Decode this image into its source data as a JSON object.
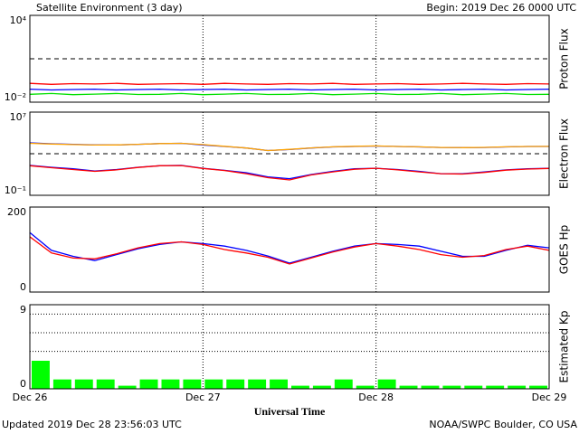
{
  "header": {
    "title": "Satellite Environment (3 day)",
    "begin": "Begin:  2019 Dec 26 0000 UTC"
  },
  "footer": {
    "x_label": "Universal Time",
    "updated": "Updated 2019 Dec 28 23:56:03 UTC",
    "credit": "NOAA/SWPC Boulder, CO USA"
  },
  "chart_data": [
    {
      "type": "line",
      "ylabel": "Proton Flux",
      "log": true,
      "xlim": [
        0,
        72
      ],
      "xticks": [
        0,
        24,
        48,
        72
      ],
      "ylim": [
        0.01,
        10000
      ],
      "yticks": [
        {
          "value": 10000,
          "label": "10⁴"
        },
        {
          "value": 0.01,
          "label": "10⁻²"
        }
      ],
      "hlines": [
        10
      ],
      "x": [
        0,
        3,
        6,
        9,
        12,
        15,
        18,
        21,
        24,
        27,
        30,
        33,
        36,
        39,
        42,
        45,
        48,
        51,
        54,
        57,
        60,
        63,
        66,
        69,
        72
      ],
      "series": [
        {
          "color": "#ff0000",
          "values": [
            0.2,
            0.17,
            0.19,
            0.18,
            0.2,
            0.17,
            0.18,
            0.19,
            0.17,
            0.2,
            0.18,
            0.17,
            0.19,
            0.18,
            0.2,
            0.17,
            0.18,
            0.19,
            0.17,
            0.18,
            0.2,
            0.18,
            0.17,
            0.19,
            0.18
          ]
        },
        {
          "color": "#0000ff",
          "values": [
            0.08,
            0.07,
            0.075,
            0.08,
            0.07,
            0.075,
            0.08,
            0.07,
            0.075,
            0.08,
            0.07,
            0.075,
            0.08,
            0.07,
            0.075,
            0.08,
            0.07,
            0.075,
            0.08,
            0.07,
            0.075,
            0.08,
            0.07,
            0.075,
            0.08
          ]
        },
        {
          "color": "#00e000",
          "values": [
            0.035,
            0.04,
            0.033,
            0.036,
            0.04,
            0.034,
            0.035,
            0.04,
            0.033,
            0.036,
            0.04,
            0.034,
            0.035,
            0.04,
            0.033,
            0.036,
            0.04,
            0.034,
            0.035,
            0.04,
            0.033,
            0.036,
            0.04,
            0.034,
            0.035
          ]
        }
      ]
    },
    {
      "type": "line",
      "ylabel": "Electron Flux",
      "log": true,
      "xlim": [
        0,
        72
      ],
      "xticks": [
        0,
        24,
        48,
        72
      ],
      "ylim": [
        0.1,
        10000000
      ],
      "yticks": [
        {
          "value": 10000000,
          "label": "10⁷"
        },
        {
          "value": 0.1,
          "label": "10⁻¹"
        }
      ],
      "hlines": [
        1000
      ],
      "x": [
        0,
        3,
        6,
        9,
        12,
        15,
        18,
        21,
        24,
        27,
        30,
        33,
        36,
        39,
        42,
        45,
        48,
        51,
        54,
        57,
        60,
        63,
        66,
        69,
        72
      ],
      "series": [
        {
          "color": "#0000ff",
          "values": [
            11000,
            9000,
            8000,
            7000,
            7000,
            8000,
            9500,
            10000,
            7000,
            5000,
            3500,
            2000,
            2500,
            3500,
            4500,
            5000,
            5500,
            5000,
            4500,
            4000,
            3800,
            4000,
            4500,
            5000,
            5000
          ]
        },
        {
          "color": "#ffa500",
          "values": [
            10000,
            8500,
            7500,
            6800,
            7000,
            8000,
            9500,
            10000,
            7500,
            5200,
            3500,
            2000,
            2600,
            3600,
            4600,
            5200,
            5600,
            5000,
            4600,
            4000,
            3800,
            4100,
            4600,
            5000,
            5100
          ]
        },
        {
          "color": "#0000ff",
          "values": [
            75,
            50,
            35,
            22,
            30,
            50,
            70,
            75,
            40,
            25,
            15,
            6,
            4,
            10,
            20,
            35,
            40,
            30,
            20,
            12,
            12,
            18,
            28,
            35,
            40
          ]
        },
        {
          "color": "#ff0000",
          "values": [
            70,
            45,
            30,
            20,
            28,
            48,
            70,
            72,
            38,
            24,
            12,
            5,
            3,
            9,
            18,
            32,
            40,
            28,
            18,
            12,
            11,
            16,
            26,
            33,
            38
          ]
        }
      ]
    },
    {
      "type": "line",
      "ylabel": "GOES Hp",
      "xlim": [
        0,
        72
      ],
      "xticks": [
        0,
        24,
        48,
        72
      ],
      "ylim": [
        0,
        200
      ],
      "yticks": [
        200,
        0
      ],
      "x": [
        0,
        3,
        6,
        9,
        12,
        15,
        18,
        21,
        24,
        27,
        30,
        33,
        36,
        39,
        42,
        45,
        48,
        51,
        54,
        57,
        60,
        63,
        66,
        69,
        72
      ],
      "series": [
        {
          "color": "#0000ff",
          "values": [
            140,
            98,
            84,
            74,
            88,
            102,
            112,
            118,
            114,
            108,
            98,
            85,
            68,
            82,
            96,
            108,
            114,
            112,
            108,
            96,
            84,
            84,
            98,
            110,
            104
          ]
        },
        {
          "color": "#ff0000",
          "values": [
            130,
            92,
            80,
            78,
            90,
            104,
            114,
            118,
            112,
            100,
            92,
            82,
            66,
            80,
            94,
            106,
            114,
            108,
            100,
            88,
            82,
            86,
            100,
            108,
            98
          ]
        }
      ]
    },
    {
      "type": "bar",
      "ylabel": "Estimated Kp",
      "color": "#00ff00",
      "xlim": [
        0,
        72
      ],
      "xticks": [
        {
          "value": 0,
          "label": "Dec 26"
        },
        {
          "value": 24,
          "label": "Dec 27"
        },
        {
          "value": 48,
          "label": "Dec 28"
        },
        {
          "value": 72,
          "label": "Dec 29"
        }
      ],
      "ylim": [
        0,
        9
      ],
      "yticks": [
        9,
        0
      ],
      "hlines": [
        4,
        6,
        8
      ],
      "values": [
        3,
        1,
        1,
        1,
        0.33,
        1,
        1,
        1,
        1,
        1,
        1,
        1,
        0.33,
        0.33,
        1,
        0.33,
        1,
        0.33,
        0.33,
        0.33,
        0.33,
        0.33,
        0.33,
        0.33
      ]
    }
  ]
}
